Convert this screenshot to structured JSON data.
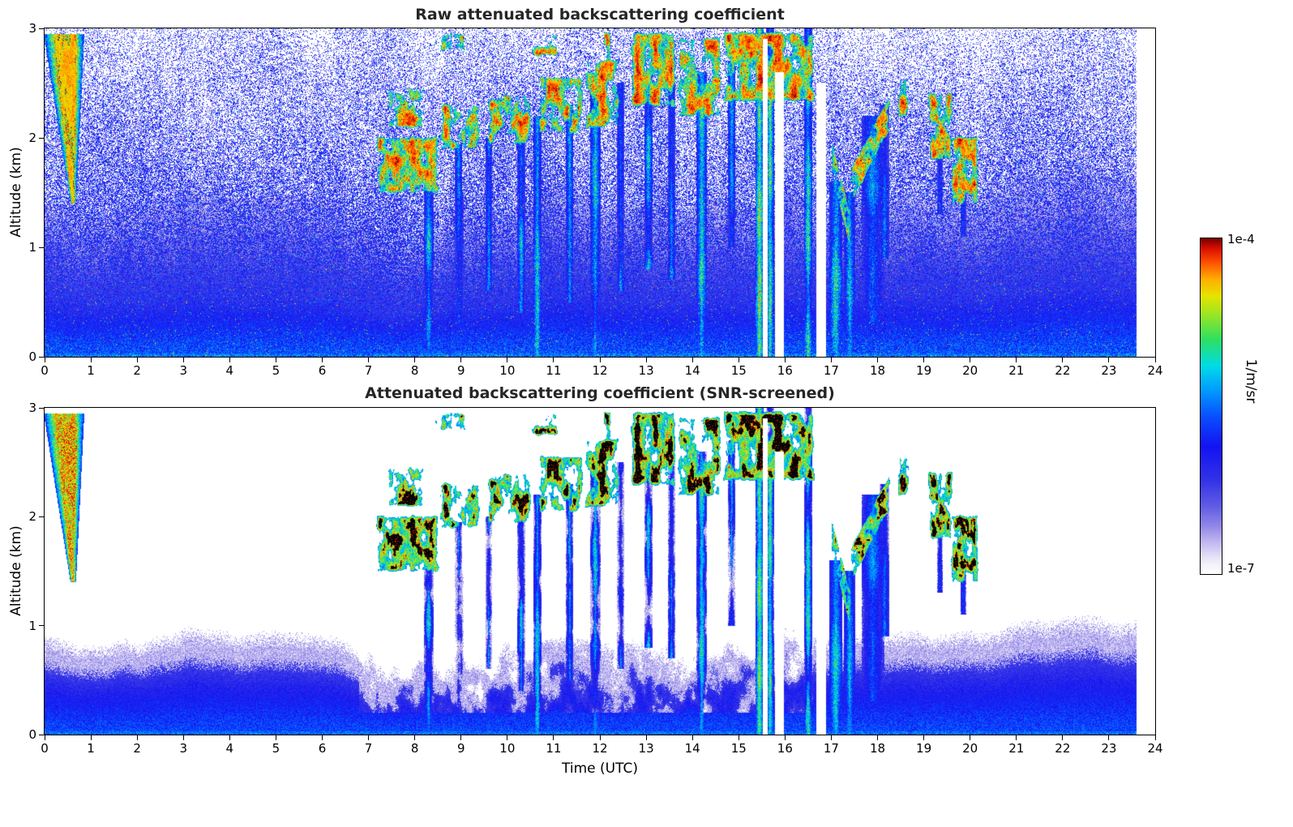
{
  "figure": {
    "background": "#ffffff",
    "panels": [
      {
        "id": "raw",
        "title": "Raw attenuated backscattering coefficient",
        "ylabel": "Altitude (km)"
      },
      {
        "id": "screened",
        "title": "Attenuated backscattering coefficient (SNR-screened)",
        "ylabel": "Altitude (km)",
        "xlabel": "Time (UTC)"
      }
    ],
    "x_ticks": [
      0,
      1,
      2,
      3,
      4,
      5,
      6,
      7,
      8,
      9,
      10,
      11,
      12,
      13,
      14,
      15,
      16,
      17,
      18,
      19,
      20,
      21,
      22,
      23,
      24
    ],
    "y_ticks": [
      0,
      1,
      2,
      3
    ],
    "colorbar": {
      "label": "1/m/sr",
      "top_label": "1e-4",
      "bottom_label": "1e-7",
      "stops": [
        {
          "p": 0.0,
          "c": "#ffffff"
        },
        {
          "p": 0.03,
          "c": "#f3f1fc"
        },
        {
          "p": 0.06,
          "c": "#ded9f6"
        },
        {
          "p": 0.1,
          "c": "#bcb2ef"
        },
        {
          "p": 0.14,
          "c": "#948ae9"
        },
        {
          "p": 0.2,
          "c": "#625ee3"
        },
        {
          "p": 0.28,
          "c": "#3333e8"
        },
        {
          "p": 0.38,
          "c": "#1414f2"
        },
        {
          "p": 0.47,
          "c": "#0a50ff"
        },
        {
          "p": 0.55,
          "c": "#009fff"
        },
        {
          "p": 0.62,
          "c": "#00dce8"
        },
        {
          "p": 0.7,
          "c": "#30e060"
        },
        {
          "p": 0.77,
          "c": "#96e628"
        },
        {
          "p": 0.83,
          "c": "#e8e400"
        },
        {
          "p": 0.88,
          "c": "#ffae00"
        },
        {
          "p": 0.93,
          "c": "#ff5000"
        },
        {
          "p": 0.97,
          "c": "#dc1000"
        },
        {
          "p": 1.0,
          "c": "#7c0000"
        }
      ]
    }
  },
  "chart_data": {
    "type": "heatmap",
    "x": {
      "label": "Time (UTC)",
      "range": [
        0,
        24
      ],
      "units": "hours"
    },
    "y": {
      "label": "Altitude (km)",
      "range": [
        0,
        3
      ]
    },
    "t_end": 23.6,
    "color_scale": {
      "type": "log",
      "min": 1e-07,
      "max": 0.0001,
      "units": "1/m/sr"
    },
    "panels": [
      {
        "title": "Raw attenuated backscattering coefficient",
        "description": "Lidar time-height curtain: dense blue noise speckle decreasing with altitude, deep-blue boundary layer below ~1 km, aerosol plume 0-1 UTC between 1.4-2.9 km, dark-red cloud layers 7-20 UTC between 1.5-3 km with green/yellow virga streaks and saturated rain columns near 15.5 and 17 UTC."
      },
      {
        "title": "Attenuated backscattering coefficient (SNR-screened)",
        "description": "Same field after SNR screening: noise removed (white), blue boundary layer up to ~1 km with lavender speckle at its top, clouds appear as black cores with red/orange fringes, cyan/green precipitation columns retained."
      }
    ],
    "features": {
      "bl": {
        "base": 0.85,
        "amp": 0.3
      },
      "plume": {
        "t": [
          0.05,
          0.95
        ],
        "h": [
          1.4,
          2.95
        ]
      },
      "clouds": [
        {
          "t0": 7.1,
          "t1": 8.6,
          "hb": 1.45,
          "ht": 2.05,
          "d": 0.75
        },
        {
          "t0": 7.3,
          "t1": 8.3,
          "hb": 2.05,
          "ht": 2.5,
          "d": 0.45
        },
        {
          "t0": 8.4,
          "t1": 9.5,
          "hb": 1.85,
          "ht": 2.35,
          "d": 0.6
        },
        {
          "t0": 9.5,
          "t1": 10.6,
          "hb": 1.9,
          "ht": 2.45,
          "d": 0.55
        },
        {
          "t0": 10.6,
          "t1": 11.7,
          "hb": 2.0,
          "ht": 2.6,
          "d": 0.6
        },
        {
          "t0": 11.6,
          "t1": 12.5,
          "hb": 2.05,
          "ht": 2.75,
          "d": 0.7
        },
        {
          "t0": 12.6,
          "t1": 13.7,
          "hb": 2.25,
          "ht": 3.0,
          "d": 0.75
        },
        {
          "t0": 13.6,
          "t1": 14.7,
          "hb": 2.15,
          "ht": 2.95,
          "d": 0.7
        },
        {
          "t0": 14.6,
          "t1": 16.7,
          "hb": 2.3,
          "ht": 3.0,
          "d": 0.85
        },
        {
          "t0": 16.9,
          "t1": 17.5,
          "hb": 1.0,
          "ht": 2.0,
          "d": 0.8,
          "desc": true
        },
        {
          "t0": 17.3,
          "t1": 18.35,
          "hb": 1.45,
          "ht": 2.3,
          "d": 0.8,
          "rise": true
        },
        {
          "t0": 18.35,
          "t1": 18.75,
          "hb": 2.15,
          "ht": 2.6,
          "d": 0.7
        },
        {
          "t0": 19.0,
          "t1": 19.7,
          "hb": 1.75,
          "ht": 2.45,
          "d": 0.55
        },
        {
          "t0": 19.5,
          "t1": 20.25,
          "hb": 1.35,
          "ht": 2.05,
          "d": 0.6
        },
        {
          "t0": 8.0,
          "t1": 9.2,
          "hb": 2.75,
          "ht": 3.0,
          "d": 0.4
        },
        {
          "t0": 10.2,
          "t1": 11.2,
          "hb": 2.7,
          "ht": 3.0,
          "d": 0.35
        },
        {
          "t0": 12.0,
          "t1": 12.35,
          "hb": 2.55,
          "ht": 3.0,
          "d": 0.5
        }
      ],
      "streaks": [
        {
          "t": 8.3,
          "w": 0.1,
          "ht": 1.8,
          "hb": 0.0,
          "v": 0.62
        },
        {
          "t": 8.95,
          "w": 0.08,
          "ht": 1.95,
          "hb": 0.3,
          "v": 0.6
        },
        {
          "t": 9.0,
          "w": 0.05,
          "ht": 1.5,
          "hb": 0.0,
          "v": 0.5
        },
        {
          "t": 9.6,
          "w": 0.07,
          "ht": 2.0,
          "hb": 0.6,
          "v": 0.55
        },
        {
          "t": 10.3,
          "w": 0.08,
          "ht": 2.1,
          "hb": 0.4,
          "v": 0.6
        },
        {
          "t": 10.65,
          "w": 0.09,
          "ht": 2.2,
          "hb": 0.0,
          "v": 0.62
        },
        {
          "t": 11.35,
          "w": 0.08,
          "ht": 2.3,
          "hb": 0.5,
          "v": 0.6
        },
        {
          "t": 11.9,
          "w": 0.11,
          "ht": 2.4,
          "hb": 0.0,
          "v": 0.68
        },
        {
          "t": 12.45,
          "w": 0.08,
          "ht": 2.5,
          "hb": 0.6,
          "v": 0.6
        },
        {
          "t": 13.05,
          "w": 0.09,
          "ht": 2.6,
          "hb": 0.8,
          "v": 0.62
        },
        {
          "t": 13.55,
          "w": 0.08,
          "ht": 2.5,
          "hb": 0.7,
          "v": 0.6
        },
        {
          "t": 14.2,
          "w": 0.11,
          "ht": 2.6,
          "hb": 0.0,
          "v": 0.68
        },
        {
          "t": 14.85,
          "w": 0.08,
          "ht": 2.7,
          "hb": 1.0,
          "v": 0.6
        },
        {
          "t": 15.45,
          "w": 0.09,
          "ht": 3.0,
          "hb": 0.0,
          "v": 0.78
        },
        {
          "t": 15.68,
          "w": 0.08,
          "ht": 3.0,
          "hb": 0.0,
          "v": 0.75
        },
        {
          "t": 16.5,
          "w": 0.09,
          "ht": 3.0,
          "hb": 0.0,
          "v": 0.7
        },
        {
          "t": 17.1,
          "w": 0.14,
          "ht": 1.6,
          "hb": 0.0,
          "v": 0.72
        },
        {
          "t": 17.4,
          "w": 0.12,
          "ht": 1.5,
          "hb": 0.0,
          "v": 0.7
        },
        {
          "t": 17.9,
          "w": 0.25,
          "ht": 2.2,
          "hb": 0.3,
          "v": 0.58
        },
        {
          "t": 18.15,
          "w": 0.1,
          "ht": 2.3,
          "hb": 0.9,
          "v": 0.55
        },
        {
          "t": 19.35,
          "w": 0.06,
          "ht": 1.9,
          "hb": 1.3,
          "v": 0.5
        },
        {
          "t": 19.85,
          "w": 0.06,
          "ht": 1.7,
          "hb": 1.1,
          "v": 0.5
        }
      ],
      "gaps": [
        {
          "t0": 15.52,
          "t1": 15.62,
          "ht": 2.9
        },
        {
          "t0": 15.78,
          "t1": 15.98,
          "ht": 2.6
        },
        {
          "t0": 16.68,
          "t1": 16.88,
          "ht": 2.5
        }
      ]
    }
  }
}
